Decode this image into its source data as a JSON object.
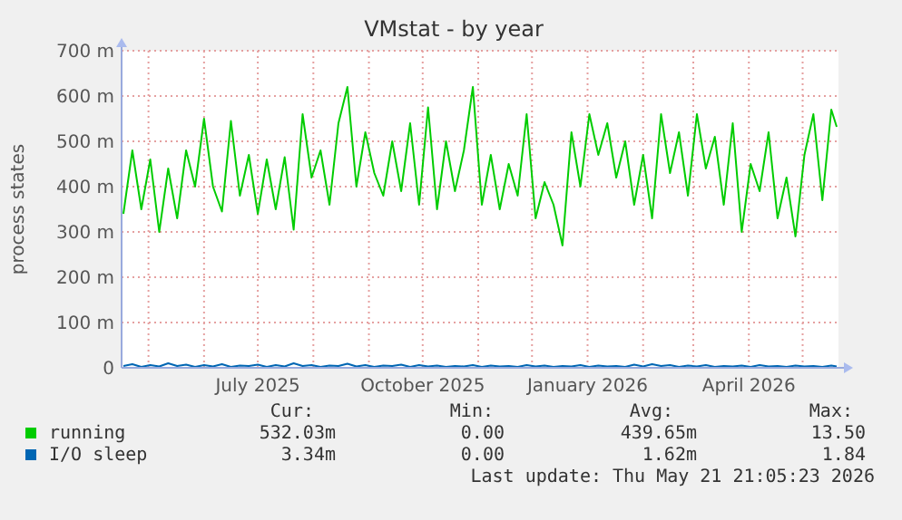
{
  "chart_data": {
    "type": "line",
    "title": "VMstat - by year",
    "ylabel": "process states",
    "xlim": [
      "2025-04-16",
      "2026-05-21"
    ],
    "xticks": [
      {
        "value": "2025-05-01",
        "label": null
      },
      {
        "value": "2025-06-01",
        "label": null
      },
      {
        "value": "2025-07-01",
        "label": "July 2025"
      },
      {
        "value": "2025-08-01",
        "label": null
      },
      {
        "value": "2025-09-01",
        "label": null
      },
      {
        "value": "2025-10-01",
        "label": "October 2025"
      },
      {
        "value": "2025-11-01",
        "label": null
      },
      {
        "value": "2025-12-01",
        "label": null
      },
      {
        "value": "2026-01-01",
        "label": "January 2026"
      },
      {
        "value": "2026-02-01",
        "label": null
      },
      {
        "value": "2026-03-01",
        "label": null
      },
      {
        "value": "2026-04-01",
        "label": "April 2026"
      },
      {
        "value": "2026-05-01",
        "label": null
      }
    ],
    "ylim": [
      0,
      700
    ],
    "yticks": [
      0,
      {
        "value": 100,
        "label": "100 m"
      },
      {
        "value": 200,
        "label": "200 m"
      },
      {
        "value": 300,
        "label": "300 m"
      },
      {
        "value": 400,
        "label": "400 m"
      },
      {
        "value": 500,
        "label": "500 m"
      },
      {
        "value": 600,
        "label": "600 m"
      },
      {
        "value": 700,
        "label": "700 m"
      }
    ],
    "grid": true,
    "legend": "bottom left",
    "x": [
      "2025-04-17",
      "2025-04-22",
      "2025-04-27",
      "2025-05-02",
      "2025-05-07",
      "2025-05-12",
      "2025-05-17",
      "2025-05-22",
      "2025-05-27",
      "2025-06-01",
      "2025-06-06",
      "2025-06-11",
      "2025-06-16",
      "2025-06-21",
      "2025-06-26",
      "2025-07-01",
      "2025-07-06",
      "2025-07-11",
      "2025-07-16",
      "2025-07-21",
      "2025-07-26",
      "2025-07-31",
      "2025-08-05",
      "2025-08-10",
      "2025-08-15",
      "2025-08-20",
      "2025-08-25",
      "2025-08-30",
      "2025-09-04",
      "2025-09-09",
      "2025-09-14",
      "2025-09-19",
      "2025-09-24",
      "2025-09-29",
      "2025-10-04",
      "2025-10-09",
      "2025-10-14",
      "2025-10-19",
      "2025-10-24",
      "2025-10-29",
      "2025-11-03",
      "2025-11-08",
      "2025-11-13",
      "2025-11-18",
      "2025-11-23",
      "2025-11-28",
      "2025-12-03",
      "2025-12-08",
      "2025-12-13",
      "2025-12-18",
      "2025-12-23",
      "2025-12-28",
      "2026-01-02",
      "2026-01-07",
      "2026-01-12",
      "2026-01-17",
      "2026-01-22",
      "2026-01-27",
      "2026-02-01",
      "2026-02-06",
      "2026-02-11",
      "2026-02-16",
      "2026-02-21",
      "2026-02-26",
      "2026-03-03",
      "2026-03-08",
      "2026-03-13",
      "2026-03-18",
      "2026-03-23",
      "2026-03-28",
      "2026-04-02",
      "2026-04-07",
      "2026-04-12",
      "2026-04-17",
      "2026-04-22",
      "2026-04-27",
      "2026-05-02",
      "2026-05-07",
      "2026-05-12",
      "2026-05-17",
      "2026-05-20"
    ],
    "series": [
      {
        "name": "running",
        "color": "#00cc00",
        "values": [
          340,
          480,
          350,
          460,
          300,
          440,
          330,
          480,
          400,
          550,
          400,
          345,
          545,
          380,
          470,
          340,
          460,
          350,
          465,
          305,
          560,
          420,
          480,
          360,
          540,
          620,
          400,
          520,
          430,
          380,
          500,
          390,
          540,
          360,
          575,
          350,
          500,
          390,
          480,
          620,
          360,
          470,
          350,
          450,
          380,
          560,
          330,
          410,
          360,
          270,
          520,
          400,
          560,
          470,
          540,
          420,
          500,
          360,
          470,
          330,
          560,
          430,
          520,
          380,
          560,
          440,
          510,
          360,
          540,
          300,
          450,
          390,
          520,
          330,
          420,
          290,
          470,
          560,
          370,
          570,
          532
        ]
      },
      {
        "name": "I/O sleep",
        "color": "#0066b3",
        "values": [
          4,
          8,
          2,
          6,
          3,
          10,
          4,
          7,
          2,
          6,
          3,
          8,
          2,
          5,
          4,
          7,
          2,
          6,
          3,
          10,
          4,
          6,
          2,
          5,
          4,
          9,
          3,
          6,
          2,
          5,
          4,
          7,
          2,
          6,
          3,
          5,
          2,
          4,
          3,
          6,
          2,
          5,
          3,
          4,
          2,
          6,
          3,
          5,
          2,
          4,
          3,
          6,
          2,
          5,
          3,
          4,
          2,
          7,
          3,
          8,
          4,
          6,
          2,
          5,
          3,
          6,
          2,
          4,
          3,
          5,
          2,
          6,
          3,
          4,
          2,
          5,
          3,
          4,
          2,
          5,
          3
        ]
      }
    ],
    "annotations": [
      "Cur:",
      "Min:",
      "Avg:",
      "Max:",
      "532.03m",
      "0.00",
      "439.65m",
      "13.50",
      "3.34m",
      "0.00",
      "1.62m",
      "1.84",
      "Last update: Thu May 21 21:05:23 2026"
    ]
  }
}
